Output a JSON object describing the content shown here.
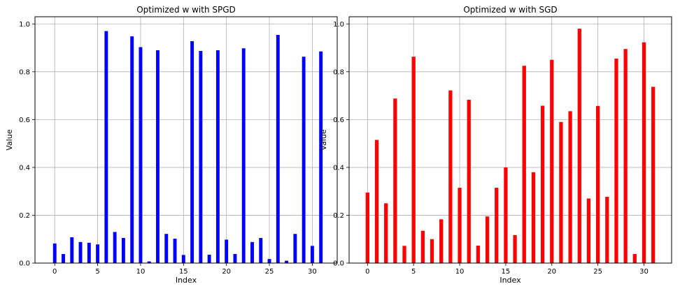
{
  "chart_data": [
    {
      "type": "bar",
      "title": "Optimized w with SPGD",
      "xlabel": "Index",
      "ylabel": "Value",
      "color": "#0000ff",
      "x": [
        0,
        1,
        2,
        3,
        4,
        5,
        6,
        7,
        8,
        9,
        10,
        11,
        12,
        13,
        14,
        15,
        16,
        17,
        18,
        19,
        20,
        21,
        22,
        23,
        24,
        25,
        26,
        27,
        28,
        29,
        30,
        31
      ],
      "values": [
        0.082,
        0.038,
        0.108,
        0.088,
        0.085,
        0.078,
        0.97,
        0.13,
        0.105,
        0.948,
        0.903,
        0.007,
        0.89,
        0.122,
        0.102,
        0.034,
        0.928,
        0.887,
        0.035,
        0.89,
        0.098,
        0.038,
        0.898,
        0.088,
        0.105,
        0.017,
        0.954,
        0.01,
        0.122,
        0.863,
        0.072,
        0.885
      ],
      "xlim": [
        -2.3,
        32.9
      ],
      "ylim": [
        0,
        1.03
      ],
      "xticks": [
        0,
        5,
        10,
        15,
        20,
        25,
        30
      ],
      "yticks": [
        0.0,
        0.2,
        0.4,
        0.6,
        0.8,
        1.0
      ],
      "grid": true
    },
    {
      "type": "bar",
      "title": "Optimized w with SGD",
      "xlabel": "Index",
      "ylabel": "Value",
      "color": "#ff0000",
      "x": [
        0,
        1,
        2,
        3,
        4,
        5,
        6,
        7,
        8,
        9,
        10,
        11,
        12,
        13,
        14,
        15,
        16,
        17,
        18,
        19,
        20,
        21,
        22,
        23,
        24,
        25,
        26,
        27,
        28,
        29,
        30,
        31
      ],
      "values": [
        0.295,
        0.515,
        0.25,
        0.688,
        0.072,
        0.863,
        0.135,
        0.1,
        0.183,
        0.722,
        0.315,
        0.683,
        0.073,
        0.195,
        0.315,
        0.4,
        0.117,
        0.825,
        0.38,
        0.658,
        0.85,
        0.59,
        0.635,
        0.98,
        0.27,
        0.657,
        0.277,
        0.855,
        0.895,
        0.038,
        0.923,
        0.737
      ],
      "xlim": [
        -2.0,
        33.0
      ],
      "ylim": [
        0,
        1.03
      ],
      "xticks": [
        0,
        5,
        10,
        15,
        20,
        25,
        30
      ],
      "yticks": [
        0.0,
        0.2,
        0.4,
        0.6,
        0.8,
        1.0
      ],
      "grid": true
    }
  ]
}
